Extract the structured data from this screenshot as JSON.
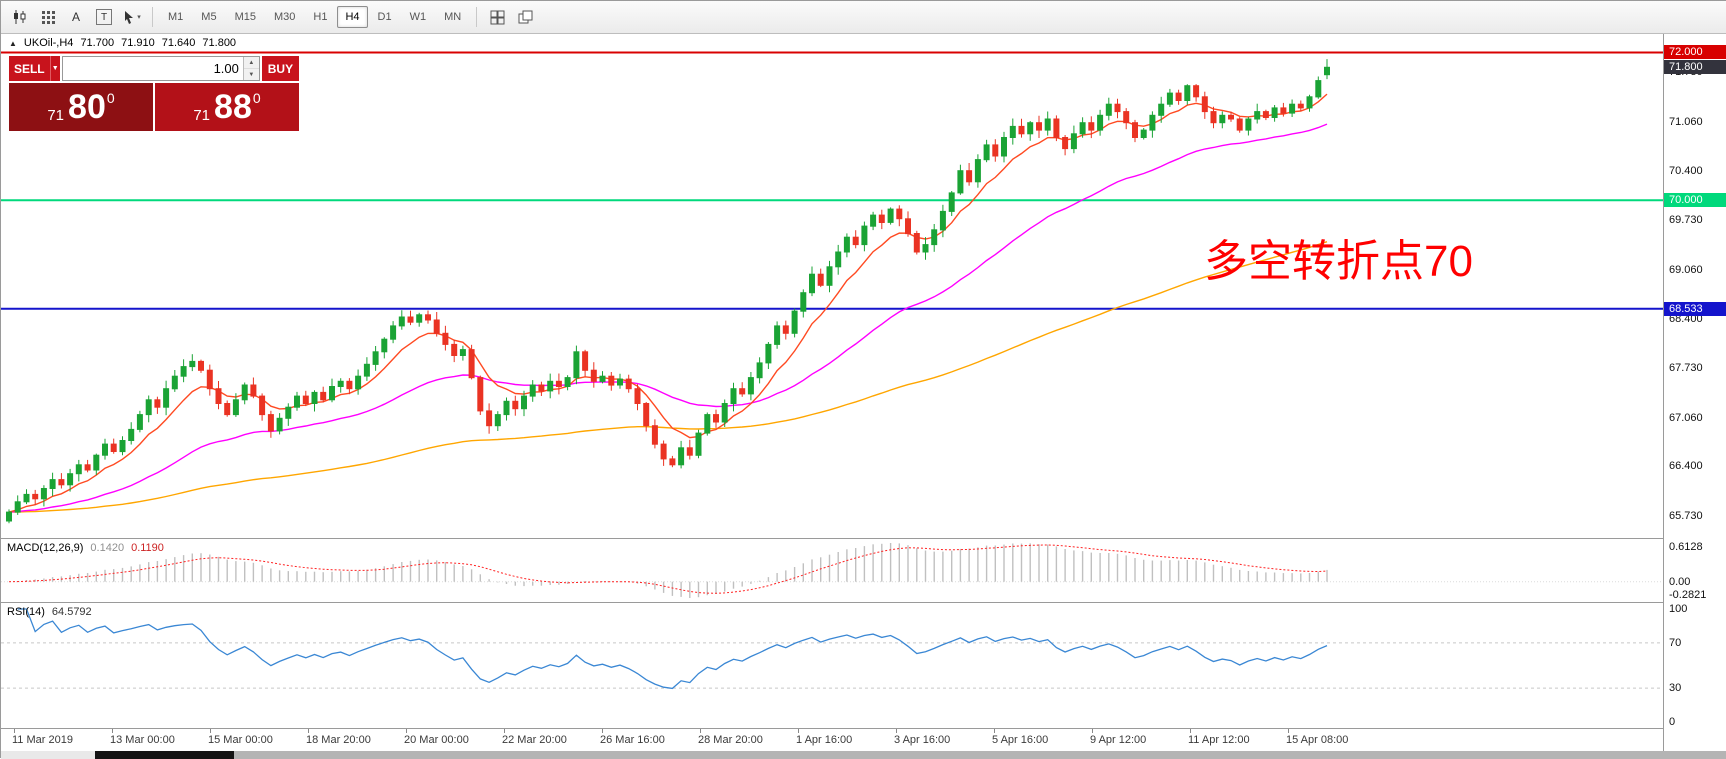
{
  "toolbar": {
    "timeframes": [
      "M1",
      "M5",
      "M15",
      "M30",
      "H1",
      "H4",
      "D1",
      "W1",
      "MN"
    ],
    "active_timeframe": "H4",
    "text_tool_label": "A",
    "textbox_tool_label": "T"
  },
  "chart_header": {
    "collapse_icon": "▲",
    "symbol": "UKOil-,H4",
    "open": "71.700",
    "high": "71.910",
    "low": "71.640",
    "close": "71.800"
  },
  "trade_panel": {
    "sell_label": "SELL",
    "buy_label": "BUY",
    "volume": "1.00",
    "caret_icon": "▼",
    "spinner_up_icon": "▲",
    "spinner_down_icon": "▼",
    "sell_price_small": "71",
    "sell_price_big": "80",
    "sell_price_sup": "0",
    "buy_price_small": "71",
    "buy_price_big": "88",
    "buy_price_sup": "0"
  },
  "annotation": {
    "text": "多空转折点70",
    "color": "#ff0000"
  },
  "colors": {
    "up": "#1aa335",
    "down": "#ea3323",
    "ema_fast": "#ff4a22",
    "ema_mid": "#ff00ff",
    "ema_slow": "#ffa600",
    "macd_hist": "#c0c0c0",
    "macd_signal": "#ff2222",
    "rsi_line": "#3a87d4",
    "hline_red": "#d80000",
    "hline_green": "#00d97c",
    "hline_blue": "#1414cc",
    "badge_current_bg": "#33333d"
  },
  "chart_data": {
    "type": "candlestick",
    "title": "UKOil-,H4",
    "timeframe": "H4",
    "ylim": [
      65.43,
      72.25
    ],
    "y_ticks": [
      "71.730",
      "71.060",
      "70.400",
      "69.730",
      "69.060",
      "68.400",
      "67.730",
      "67.060",
      "66.400",
      "65.730"
    ],
    "time_labels": [
      "11 Mar 2019",
      "13 Mar 00:00",
      "15 Mar 00:00",
      "18 Mar 20:00",
      "20 Mar 00:00",
      "22 Mar 20:00",
      "26 Mar 16:00",
      "28 Mar 20:00",
      "1 Apr 16:00",
      "3 Apr 16:00",
      "5 Apr 16:00",
      "9 Apr 12:00",
      "11 Apr 12:00",
      "15 Apr 08:00"
    ],
    "closes": [
      65.78,
      65.92,
      66.02,
      65.96,
      66.1,
      66.22,
      66.15,
      66.3,
      66.42,
      66.35,
      66.55,
      66.7,
      66.6,
      66.75,
      66.9,
      67.1,
      67.3,
      67.2,
      67.45,
      67.62,
      67.75,
      67.82,
      67.7,
      67.45,
      67.25,
      67.1,
      67.3,
      67.5,
      67.35,
      67.1,
      66.88,
      67.05,
      67.2,
      67.35,
      67.25,
      67.4,
      67.3,
      67.48,
      67.55,
      67.45,
      67.62,
      67.78,
      67.95,
      68.12,
      68.3,
      68.42,
      68.35,
      68.45,
      68.38,
      68.2,
      68.05,
      67.9,
      67.98,
      67.6,
      67.15,
      66.95,
      67.1,
      67.28,
      67.18,
      67.35,
      67.5,
      67.42,
      67.55,
      67.48,
      67.6,
      67.95,
      67.7,
      67.55,
      67.62,
      67.5,
      67.58,
      67.45,
      67.25,
      66.95,
      66.7,
      66.5,
      66.42,
      66.65,
      66.55,
      66.85,
      67.1,
      67.0,
      67.25,
      67.45,
      67.38,
      67.6,
      67.8,
      68.05,
      68.3,
      68.2,
      68.5,
      68.75,
      69.0,
      68.85,
      69.1,
      69.3,
      69.5,
      69.4,
      69.65,
      69.8,
      69.7,
      69.88,
      69.75,
      69.55,
      69.3,
      69.4,
      69.6,
      69.85,
      70.1,
      70.4,
      70.25,
      70.55,
      70.75,
      70.6,
      70.85,
      71.0,
      70.9,
      71.05,
      70.95,
      71.1,
      70.85,
      70.7,
      70.9,
      71.05,
      70.95,
      71.15,
      71.3,
      71.2,
      71.05,
      70.85,
      70.95,
      71.15,
      71.3,
      71.45,
      71.35,
      71.55,
      71.4,
      71.2,
      71.05,
      71.15,
      71.1,
      70.95,
      71.1,
      71.2,
      71.12,
      71.25,
      71.18,
      71.3,
      71.25,
      71.4,
      71.62,
      71.8
    ],
    "current_bar": {
      "open": 71.7,
      "high": 71.91,
      "low": 71.64,
      "close": 71.8
    },
    "hlines": [
      {
        "price": 72.0,
        "label": "72.000",
        "color_key": "hline_red"
      },
      {
        "price": 70.0,
        "label": "70.000",
        "color_key": "hline_green"
      },
      {
        "price": 68.533,
        "label": "68.533",
        "color_key": "hline_blue"
      }
    ],
    "current_price": {
      "value": 71.8,
      "label": "71.800"
    },
    "overlays": [
      {
        "name": "ma-fast",
        "period": 8,
        "color_key": "ema_fast"
      },
      {
        "name": "ma-mid",
        "period": 34,
        "color_key": "ema_mid"
      },
      {
        "name": "ma-slow",
        "period": 120,
        "color_key": "ema_slow"
      }
    ],
    "macd": {
      "label": "MACD(12,26,9)",
      "value_main": "0.1420",
      "value_signal": "0.1190",
      "params": [
        12,
        26,
        9
      ],
      "axis_max_label": "0.6128",
      "axis_zero_label": "0.00",
      "axis_min_label": "-0.2821"
    },
    "rsi": {
      "label": "RSI(14)",
      "value": "64.5792",
      "period": 14,
      "levels": [
        70,
        30
      ],
      "axis_labels": [
        "100",
        "70",
        "30",
        "0"
      ],
      "axis_values": [
        100,
        70,
        30,
        0
      ]
    }
  }
}
